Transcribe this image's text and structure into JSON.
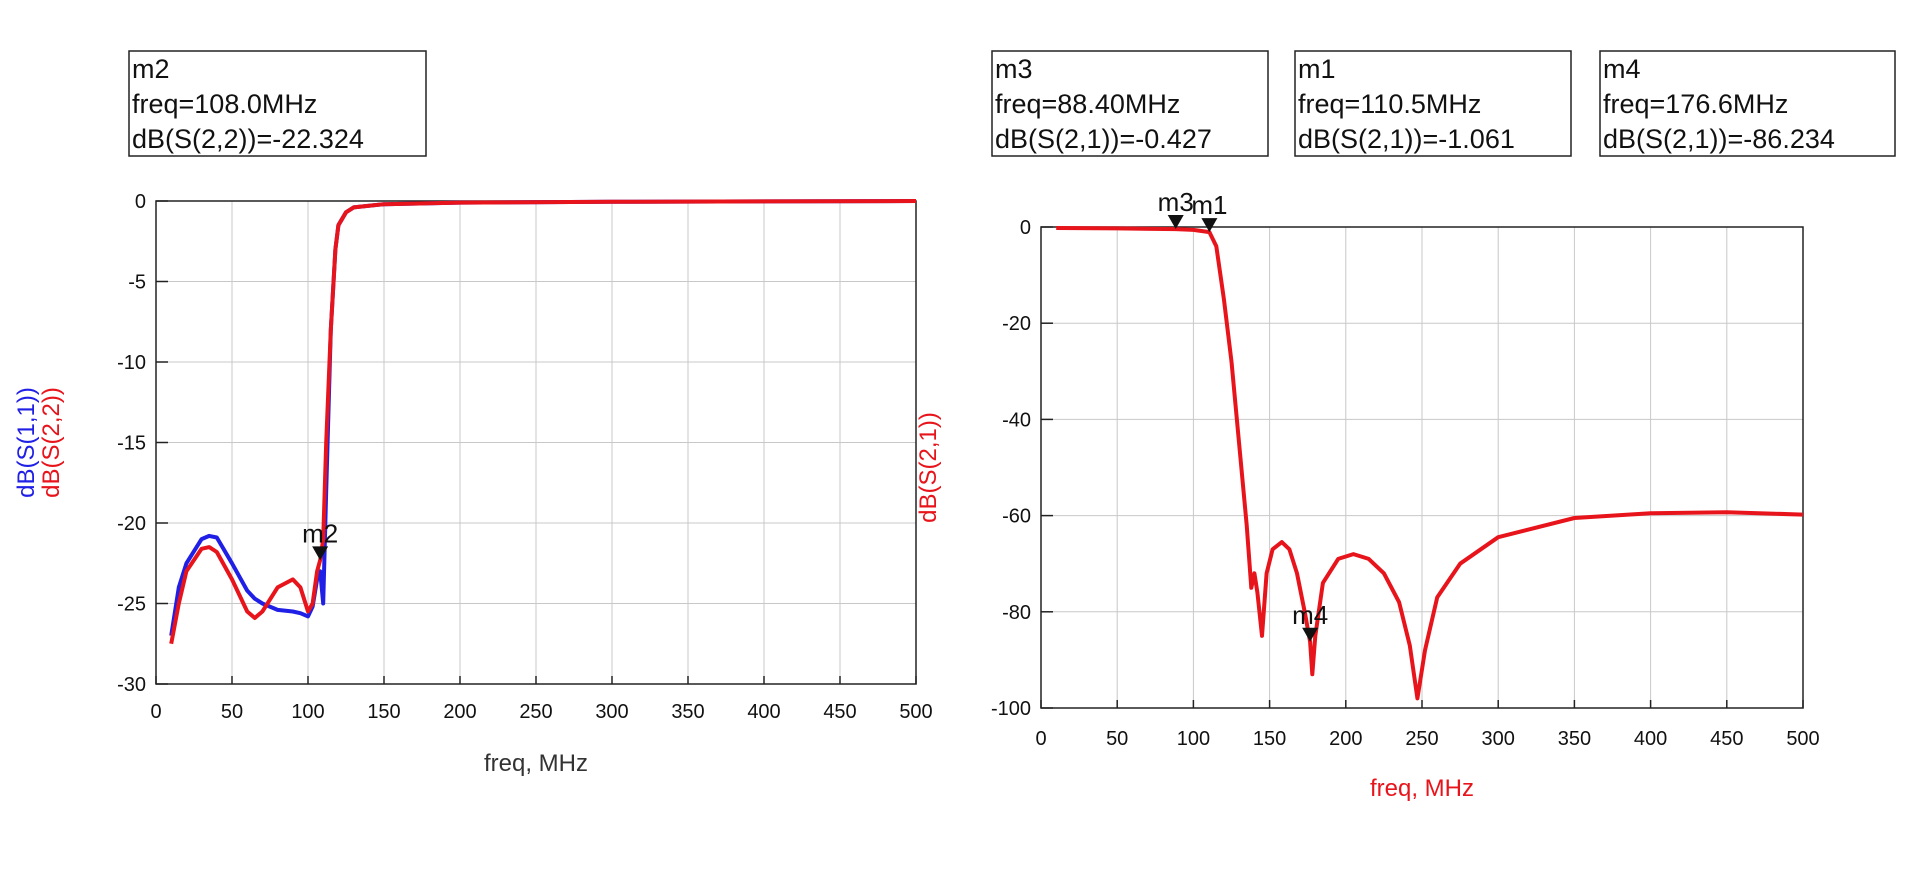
{
  "chart_data": [
    {
      "type": "line",
      "xlabel": "freq, MHz",
      "xlabel_color": "#333333",
      "xlim": [
        0,
        500
      ],
      "xticks": [
        0,
        50,
        100,
        150,
        200,
        250,
        300,
        350,
        400,
        450,
        500
      ],
      "ylim": [
        -30,
        0
      ],
      "yticks": [
        -30,
        -25,
        -20,
        -15,
        -10,
        -5,
        0
      ],
      "grid": true,
      "x": [
        10,
        15,
        20,
        30,
        35,
        40,
        50,
        60,
        65,
        70,
        80,
        90,
        95,
        100,
        103,
        106,
        108,
        110,
        112,
        115,
        118,
        120,
        125,
        130,
        150,
        200,
        300,
        500
      ],
      "series": [
        {
          "name": "dB(S(1,1))",
          "color": "#1f1fe6",
          "values": [
            -27,
            -24,
            -22.5,
            -21,
            -20.8,
            -20.9,
            -22.5,
            -24.2,
            -24.7,
            -25,
            -25.4,
            -25.5,
            -25.6,
            -25.8,
            -25.2,
            -23.5,
            -23,
            -25,
            -18,
            -8,
            -3,
            -1.5,
            -0.7,
            -0.4,
            -0.2,
            -0.1,
            -0.05,
            0
          ]
        },
        {
          "name": "dB(S(2,2))",
          "color": "#e8141b",
          "values": [
            -27.5,
            -25,
            -23,
            -21.6,
            -21.5,
            -21.8,
            -23.5,
            -25.5,
            -25.9,
            -25.5,
            -24,
            -23.5,
            -24,
            -25.5,
            -25,
            -23,
            -22.3,
            -21,
            -15,
            -8,
            -3,
            -1.5,
            -0.7,
            -0.4,
            -0.2,
            -0.1,
            -0.05,
            0
          ]
        }
      ],
      "markers": [
        {
          "name": "m2",
          "freq": "freq=108.0MHz",
          "value": "dB(S(2,2))=-22.324",
          "x": 108,
          "y": -22.324
        }
      ]
    },
    {
      "type": "line",
      "xlabel": "freq, MHz",
      "xlabel_color": "#e8141b",
      "xlim": [
        0,
        500
      ],
      "xticks": [
        0,
        50,
        100,
        150,
        200,
        250,
        300,
        350,
        400,
        450,
        500
      ],
      "ylim": [
        -100,
        0
      ],
      "yticks": [
        -100,
        -80,
        -60,
        -40,
        -20,
        0
      ],
      "grid": true,
      "x": [
        10,
        50,
        88.4,
        100,
        110.5,
        115,
        120,
        125,
        130,
        135,
        138,
        140,
        142,
        145,
        148,
        152,
        158,
        163,
        168,
        173,
        176.6,
        178,
        180,
        185,
        195,
        205,
        215,
        225,
        235,
        242,
        247,
        252,
        260,
        275,
        300,
        350,
        400,
        450,
        500
      ],
      "series": [
        {
          "name": "dB(S(2,1))",
          "color": "#e8141b",
          "values": [
            -0.2,
            -0.3,
            -0.427,
            -0.6,
            -1.061,
            -4,
            -15,
            -28,
            -45,
            -62,
            -75,
            -72,
            -76,
            -85,
            -72,
            -67,
            -65.5,
            -67,
            -72,
            -80,
            -86.234,
            -93,
            -85,
            -74,
            -69,
            -68,
            -69,
            -72,
            -78,
            -87,
            -98,
            -88,
            -77,
            -70,
            -64.5,
            -60.5,
            -59.5,
            -59.3,
            -59.8
          ]
        }
      ],
      "markers": [
        {
          "name": "m3",
          "freq": "freq=88.40MHz",
          "value": "dB(S(2,1))=-0.427",
          "x": 88.4,
          "y": -0.427
        },
        {
          "name": "m1",
          "freq": "freq=110.5MHz",
          "value": "dB(S(2,1))=-1.061",
          "x": 110.5,
          "y": -1.061
        },
        {
          "name": "m4",
          "freq": "freq=176.6MHz",
          "value": "dB(S(2,1))=-86.234",
          "x": 176.6,
          "y": -86.234
        }
      ]
    }
  ]
}
